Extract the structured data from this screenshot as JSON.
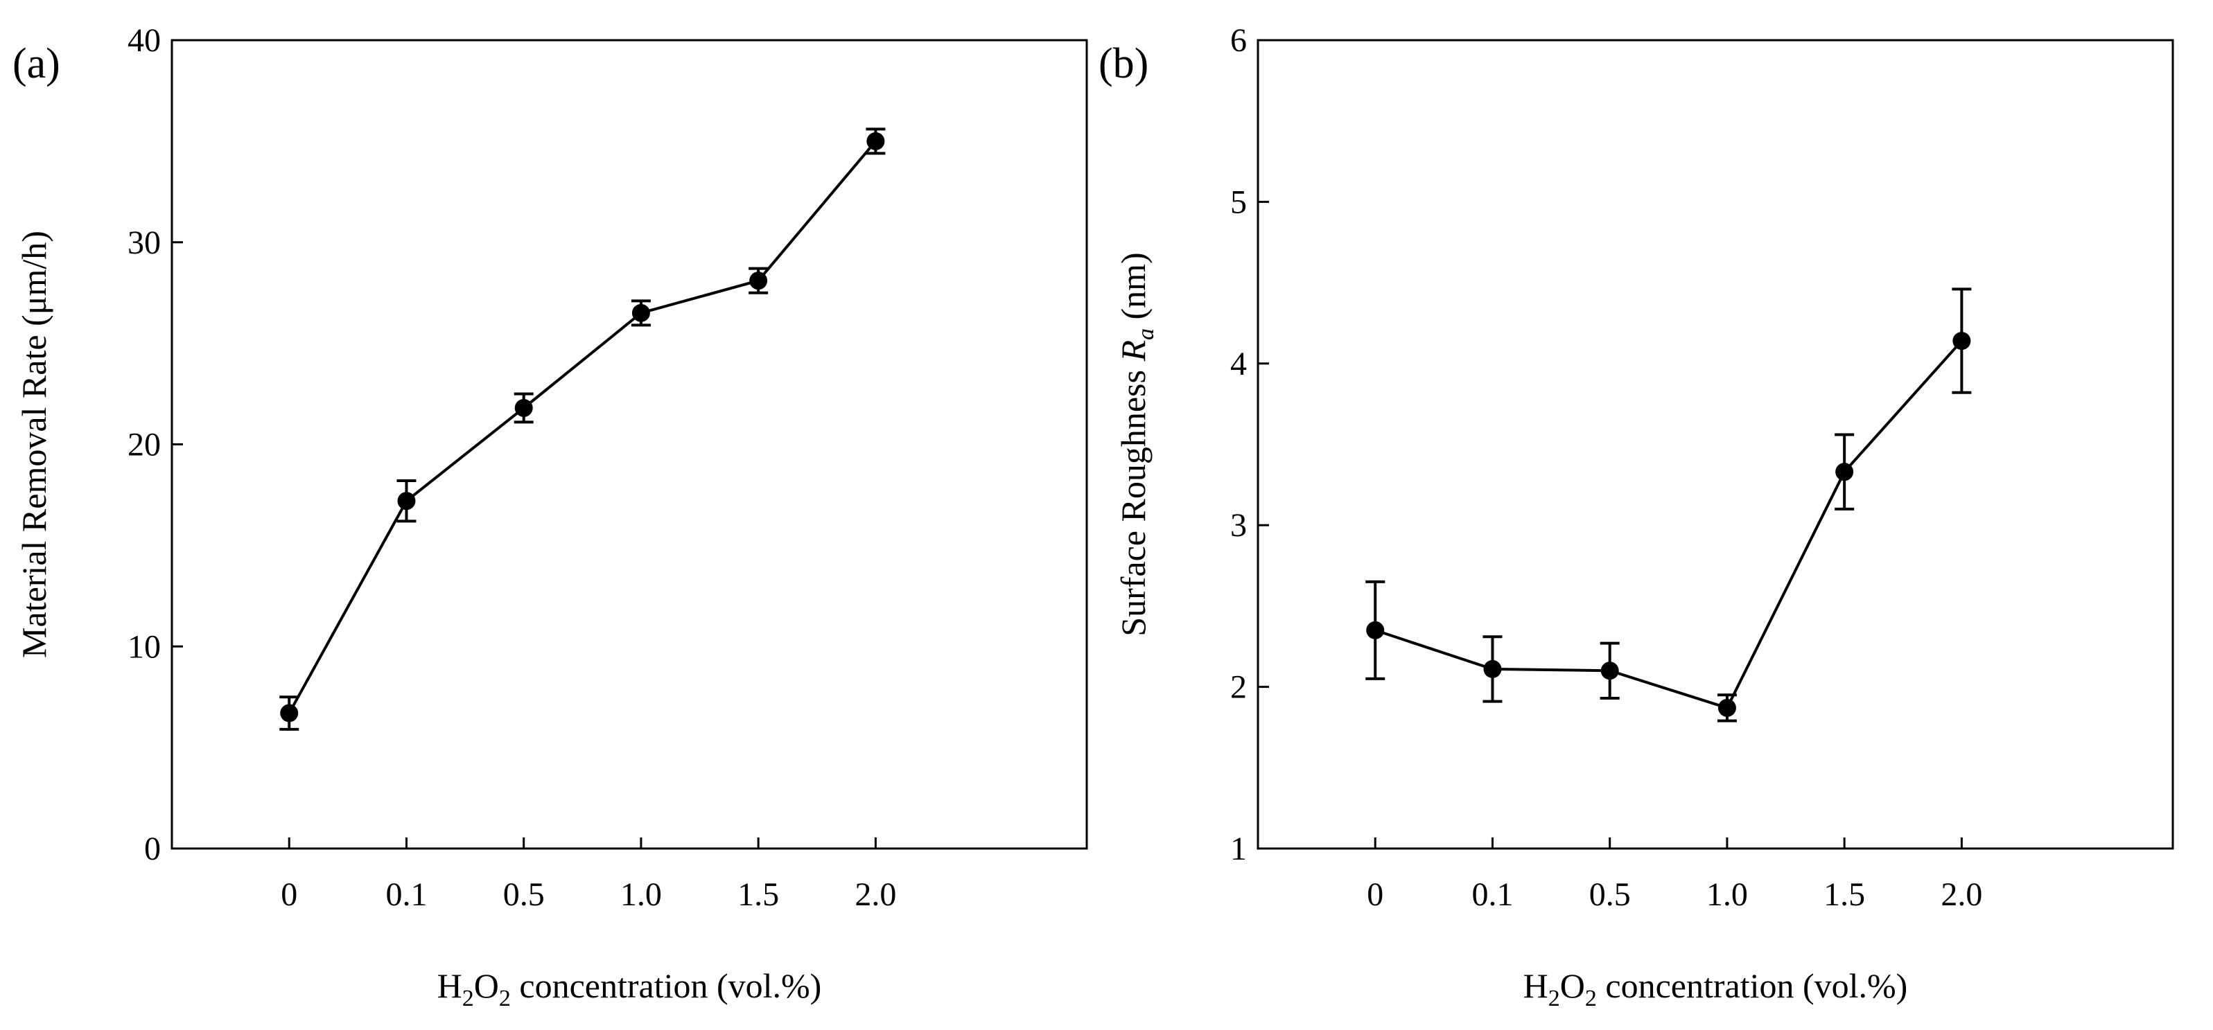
{
  "chart_data": [
    {
      "type": "line",
      "panel_label": "(a)",
      "title": "",
      "categories": [
        "0",
        "0.1",
        "0.5",
        "1.0",
        "1.5",
        "2.0"
      ],
      "series": [
        {
          "name": "Material Removal Rate",
          "values": [
            6.7,
            17.2,
            21.8,
            26.5,
            28.1,
            35.0
          ],
          "errors": [
            0.8,
            1.0,
            0.7,
            0.6,
            0.6,
            0.6
          ]
        }
      ],
      "xlabel": {
        "prefix": "H",
        "sub1": "2",
        "mid": "O",
        "sub2": "2",
        "suffix": " concentration (vol.%)"
      },
      "ylabel": {
        "text": "Material Removal Rate (μm/h)",
        "italic": "",
        "sub": ""
      },
      "ylim": [
        0,
        40
      ],
      "yticks": [
        "0",
        "10",
        "20",
        "30",
        "40"
      ],
      "grid": false,
      "legend": "none",
      "color": "#000000"
    },
    {
      "type": "line",
      "panel_label": "(b)",
      "title": "",
      "categories": [
        "0",
        "0.1",
        "0.5",
        "1.0",
        "1.5",
        "2.0"
      ],
      "series": [
        {
          "name": "Surface Roughness Ra",
          "values": [
            2.35,
            2.11,
            2.1,
            1.87,
            3.33,
            4.14
          ],
          "errors": [
            0.3,
            0.2,
            0.17,
            0.08,
            0.23,
            0.32
          ]
        }
      ],
      "xlabel": {
        "prefix": "H",
        "sub1": "2",
        "mid": "O",
        "sub2": "2",
        "suffix": " concentration (vol.%)"
      },
      "ylabel": {
        "text": "Surface Roughness  ",
        "italic": "R",
        "sub": "a",
        "unit": " (nm)"
      },
      "ylim": [
        1,
        6
      ],
      "yticks": [
        "1",
        "2",
        "3",
        "4",
        "5",
        "6"
      ],
      "grid": false,
      "legend": "none",
      "color": "#000000"
    }
  ]
}
